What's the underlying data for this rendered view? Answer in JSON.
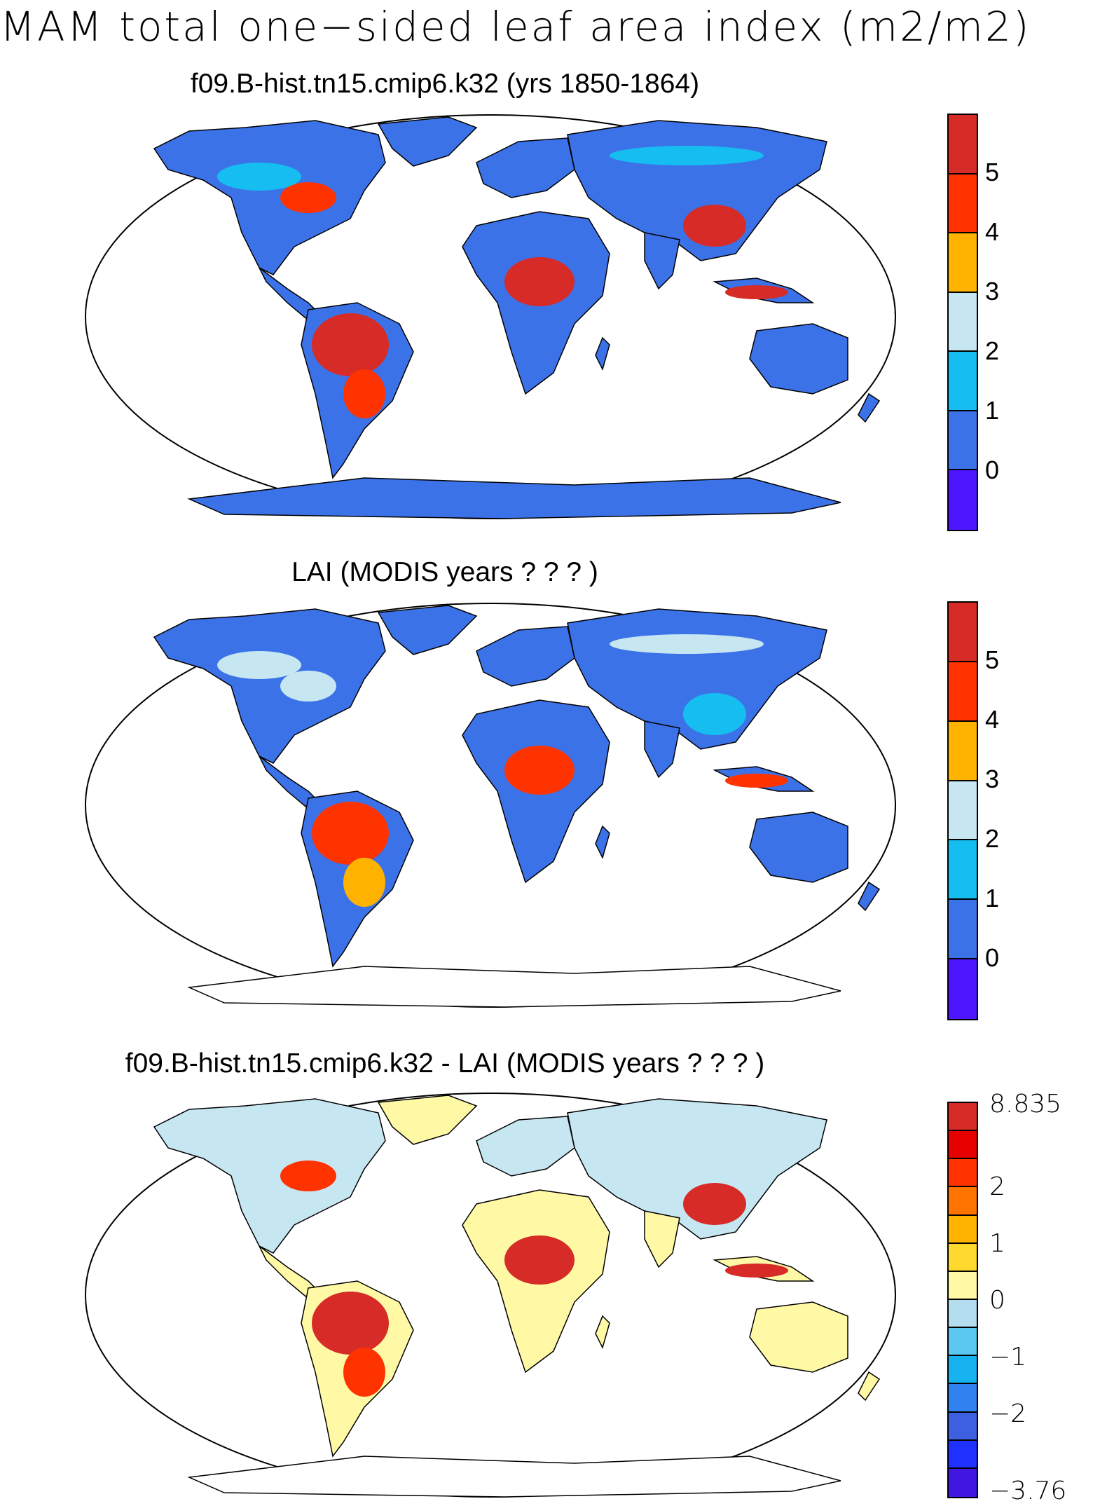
{
  "title": "MAM total one−sided leaf area index (m2/m2)",
  "panels": [
    {
      "title": "f09.B-hist.tn15.cmip6.k32 (yrs 1850-1864)",
      "colorbar": {
        "colors": [
          "#d62b26",
          "#ff3300",
          "#ffb300",
          "#c6e6f2",
          "#16bdf0",
          "#3c72e8",
          "#4d16ff"
        ],
        "labels": [
          "5",
          "4",
          "3",
          "2",
          "1",
          "0"
        ]
      }
    },
    {
      "title": "LAI (MODIS years ? ? ? )",
      "colorbar": {
        "colors": [
          "#d62b26",
          "#ff3300",
          "#ffb300",
          "#c6e6f2",
          "#16bdf0",
          "#3c72e8",
          "#4d16ff"
        ],
        "labels": [
          "5",
          "4",
          "3",
          "2",
          "1",
          "0"
        ]
      }
    },
    {
      "title": "f09.B-hist.tn15.cmip6.k32 - LAI (MODIS years ? ? ? )",
      "colorbar": {
        "colors": [
          "#d62b26",
          "#e60000",
          "#ff3300",
          "#ff7300",
          "#ffb300",
          "#ffd92e",
          "#fff9a6",
          "#b3dcef",
          "#5ac8f0",
          "#16b3f0",
          "#3082f0",
          "#3c60e0",
          "#2030ff",
          "#4016e0"
        ],
        "labels": [
          "8.835",
          "2",
          "1",
          "0",
          "−1",
          "−2",
          "−3.76"
        ]
      }
    }
  ],
  "map_colors": {
    "ocean": "#ffffff",
    "coast": "#000000",
    "low": "#3c72e8",
    "mid": "#16bdf0",
    "light": "#c6e6f2",
    "orange": "#ffb300",
    "redorange": "#ff3300",
    "red": "#d62b26",
    "pale_yellow": "#fff9a6",
    "yellow": "#ffd92e"
  }
}
